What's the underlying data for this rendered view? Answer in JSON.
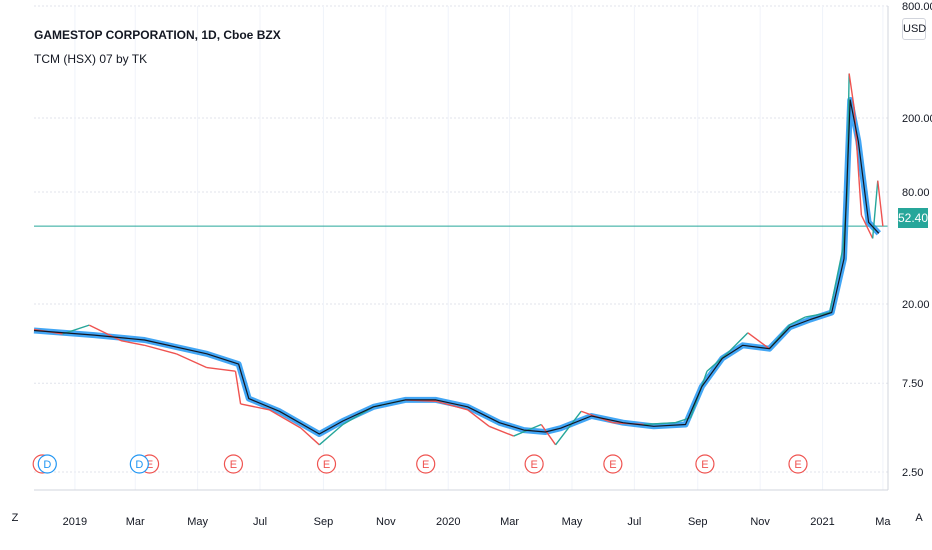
{
  "header": {
    "symbol_title": "GAMESTOP CORPORATION, 1D, Cboe BZX",
    "indicator_title": "TCM (HSX) 07 by TK",
    "currency_button": "USD",
    "last_price_tag": "52.40"
  },
  "axis_buttons": {
    "left": "Z",
    "right": "A"
  },
  "chart_data": {
    "type": "line",
    "y_scale": "log",
    "ylim": [
      2.0,
      800.0
    ],
    "y_tick_labels": [
      "800.00",
      "200.00",
      "80.00",
      "20.00",
      "7.50",
      "2.50"
    ],
    "y_tick_values": [
      800,
      200,
      80,
      20,
      7.5,
      2.5
    ],
    "x_tick_labels": [
      "2019",
      "Mar",
      "May",
      "Jul",
      "Sep",
      "Nov",
      "2020",
      "Mar",
      "May",
      "Jul",
      "Sep",
      "Nov",
      "2021",
      "Ma"
    ],
    "x_tick_dates": [
      "2019-01-01",
      "2019-03-01",
      "2019-05-01",
      "2019-07-01",
      "2019-09-01",
      "2019-11-01",
      "2020-01-01",
      "2020-03-01",
      "2020-05-01",
      "2020-07-01",
      "2020-09-01",
      "2020-11-01",
      "2021-01-01",
      "2021-03-01"
    ],
    "xlim": [
      "2018-11-22",
      "2021-03-06"
    ],
    "last_price": 52.4,
    "price_series": {
      "dates": [
        "2018-11-22",
        "2018-12-20",
        "2019-01-15",
        "2019-02-15",
        "2019-03-10",
        "2019-04-10",
        "2019-05-10",
        "2019-06-07",
        "2019-06-12",
        "2019-07-10",
        "2019-08-10",
        "2019-08-28",
        "2019-09-20",
        "2019-10-20",
        "2019-11-20",
        "2019-12-20",
        "2020-01-20",
        "2020-02-10",
        "2020-03-05",
        "2020-04-01",
        "2020-04-15",
        "2020-05-10",
        "2020-06-10",
        "2020-07-10",
        "2020-08-10",
        "2020-08-25",
        "2020-09-10",
        "2020-10-01",
        "2020-10-20",
        "2020-11-10",
        "2020-11-30",
        "2020-12-15",
        "2021-01-08",
        "2021-01-21",
        "2021-01-25",
        "2021-01-27",
        "2021-02-01",
        "2021-02-08",
        "2021-02-19",
        "2021-02-24",
        "2021-03-01"
      ],
      "values": [
        14.6,
        13.8,
        15.4,
        12.7,
        12.0,
        10.8,
        9.1,
        8.7,
        5.8,
        5.4,
        4.3,
        3.5,
        4.5,
        5.6,
        6.1,
        6.0,
        5.4,
        4.4,
        3.9,
        4.5,
        3.5,
        5.3,
        4.6,
        4.5,
        4.6,
        4.9,
        8.7,
        11.0,
        14.0,
        11.5,
        15.5,
        17.0,
        18.0,
        40.0,
        77.0,
        347.0,
        225.0,
        60.0,
        45.0,
        92.0,
        52.4
      ]
    },
    "ma_series": {
      "dates": [
        "2018-11-22",
        "2019-01-20",
        "2019-03-10",
        "2019-05-10",
        "2019-06-10",
        "2019-06-20",
        "2019-07-20",
        "2019-08-28",
        "2019-09-20",
        "2019-10-20",
        "2019-11-20",
        "2019-12-20",
        "2020-01-20",
        "2020-02-20",
        "2020-03-15",
        "2020-04-05",
        "2020-04-20",
        "2020-05-20",
        "2020-06-20",
        "2020-07-20",
        "2020-08-20",
        "2020-09-05",
        "2020-09-25",
        "2020-10-15",
        "2020-11-10",
        "2020-11-30",
        "2020-12-20",
        "2021-01-10",
        "2021-01-22",
        "2021-01-28",
        "2021-02-05",
        "2021-02-15",
        "2021-02-25"
      ],
      "values": [
        14.4,
        13.6,
        12.8,
        10.8,
        9.5,
        6.2,
        5.3,
        4.0,
        4.7,
        5.6,
        6.1,
        6.1,
        5.6,
        4.6,
        4.2,
        4.1,
        4.3,
        5.0,
        4.6,
        4.4,
        4.5,
        7.2,
        10.2,
        12.0,
        11.5,
        15.0,
        16.5,
        18.0,
        35.0,
        250.0,
        150.0,
        55.0,
        48.0
      ]
    },
    "earnings_markers": [
      {
        "date": "2018-11-30",
        "label": "E"
      },
      {
        "date": "2019-03-15",
        "label": "E"
      },
      {
        "date": "2019-06-05",
        "label": "E"
      },
      {
        "date": "2019-09-04",
        "label": "E"
      },
      {
        "date": "2019-12-10",
        "label": "E"
      },
      {
        "date": "2020-03-25",
        "label": "E"
      },
      {
        "date": "2020-06-10",
        "label": "E"
      },
      {
        "date": "2020-09-08",
        "label": "E"
      },
      {
        "date": "2020-12-08",
        "label": "E"
      }
    ],
    "dividend_markers": [
      {
        "date": "2018-12-05",
        "label": "D"
      },
      {
        "date": "2019-03-05",
        "label": "D"
      }
    ],
    "colors": {
      "price_up": "#26a69a",
      "price_down": "#ef5350",
      "ma_band": "#2196f3",
      "ma_line": "#131722",
      "last_price_line": "#26a69a",
      "earnings": "#ef5350",
      "dividend": "#2196f3"
    }
  }
}
